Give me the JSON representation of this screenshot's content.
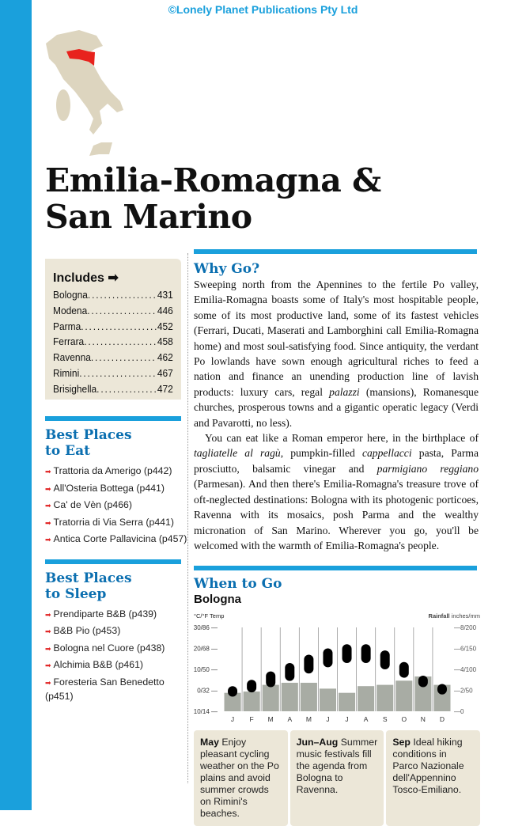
{
  "copyright": "©Lonely Planet Publications Pty Ltd",
  "title_line1": "Emilia-Romagna &",
  "title_line2": "San Marino",
  "colors": {
    "accent": "#1aa0dc",
    "heading": "#0b6fb0",
    "highlight_region": "#e8221d",
    "map_land": "#ddd5bf",
    "box_bg": "#ece7d8"
  },
  "includes": {
    "heading": "Includes",
    "icon": "arrow-right-icon",
    "items": [
      {
        "name": "Bologna",
        "page": "431"
      },
      {
        "name": "Modena",
        "page": "446"
      },
      {
        "name": "Parma",
        "page": "452"
      },
      {
        "name": "Ferrara",
        "page": "458"
      },
      {
        "name": "Ravenna",
        "page": "462"
      },
      {
        "name": "Rimini",
        "page": "467"
      },
      {
        "name": "Brisighella",
        "page": "472"
      }
    ]
  },
  "best_eat": {
    "heading1": "Best Places",
    "heading2": "to Eat",
    "items": [
      "Trattoria da Amerigo (p442)",
      "All'Osteria Bottega (p441)",
      "Ca' de Vèn (p466)",
      "Tratorria di Via Serra (p441)",
      "Antica Corte Pallavicina (p457)"
    ]
  },
  "best_sleep": {
    "heading1": "Best Places",
    "heading2": "to Sleep",
    "items": [
      "Prendiparte B&B (p439)",
      "B&B Pio (p453)",
      "Bologna nel Cuore (p438)",
      "Alchimia B&B (p461)",
      "Foresteria San Benedetto (p451)"
    ]
  },
  "why": {
    "heading": "Why Go?",
    "paragraphs": [
      "Sweeping north from the Apennines to the fertile Po valley, Emilia-Romagna boasts some of Italy's most hospitable people, some of its most productive land, some of its fastest vehicles (Ferrari, Ducati, Maserati and Lamborghini call Emilia-Romagna home) and most soul-satisfying food. Since antiquity, the verdant Po lowlands have sown enough agricultural riches to feed a nation and finance an unending production line of lavish products: luxury cars, regal palazzi (mansions), Romanesque churches, prosperous towns and a gigantic operatic legacy (Verdi and Pavarotti, no less).",
      "You can eat like a Roman emperor here, in the birthplace of tagliatelle al ragù, pumpkin-filled cappellacci pasta, Parma prosciutto, balsamic vinegar and parmigiano reggiano (Parmesan). And then there's Emilia-Romagna's treasure trove of oft-neglected destinations: Bologna with its photogenic porticoes, Ravenna with its mosaics, posh Parma and the wealthy micronation of San Marino. Wherever you go, you'll be welcomed with the warmth of Emilia-Romagna's people."
    ]
  },
  "when": {
    "heading": "When to Go",
    "city": "Bologna"
  },
  "chart_data": {
    "type": "bar",
    "title": "Bologna",
    "left_axis_label": "°C/°F Temp",
    "right_axis_label_bold": "Rainfall",
    "right_axis_label": "inches/mm",
    "categories": [
      "J",
      "F",
      "M",
      "A",
      "M",
      "J",
      "J",
      "A",
      "S",
      "O",
      "N",
      "D"
    ],
    "left_ticks": [
      "-10/14",
      "0/32",
      "10/50",
      "20/68",
      "30/86"
    ],
    "left_tick_values": [
      -10,
      0,
      10,
      20,
      30
    ],
    "right_ticks": [
      "0",
      "2/50",
      "4/100",
      "6/150",
      "8/200"
    ],
    "right_tick_values": [
      0,
      50,
      100,
      150,
      200
    ],
    "temp_ylim": [
      -10,
      30
    ],
    "rain_ylim": [
      0,
      200
    ],
    "rainfall_mm": [
      44,
      47,
      63,
      68,
      68,
      54,
      44,
      60,
      63,
      73,
      83,
      63
    ],
    "temp_low_c": [
      -3,
      -1,
      1.5,
      4.5,
      8,
      11,
      13,
      13,
      10,
      6,
      1.5,
      -2
    ],
    "temp_high_c": [
      2,
      5,
      9,
      13,
      17,
      20,
      22,
      22,
      19,
      13.5,
      7,
      3
    ]
  },
  "months": [
    {
      "label": "May",
      "text": "Enjoy pleasant cycling weather on the Po plains and avoid summer crowds on Rimini's beaches."
    },
    {
      "label": "Jun–Aug",
      "text": "Summer music festivals fill the agenda from Bologna to Ravenna."
    },
    {
      "label": "Sep",
      "text": "Ideal hiking conditions in Parco Nazionale dell'Appennino Tosco-Emiliano."
    }
  ]
}
